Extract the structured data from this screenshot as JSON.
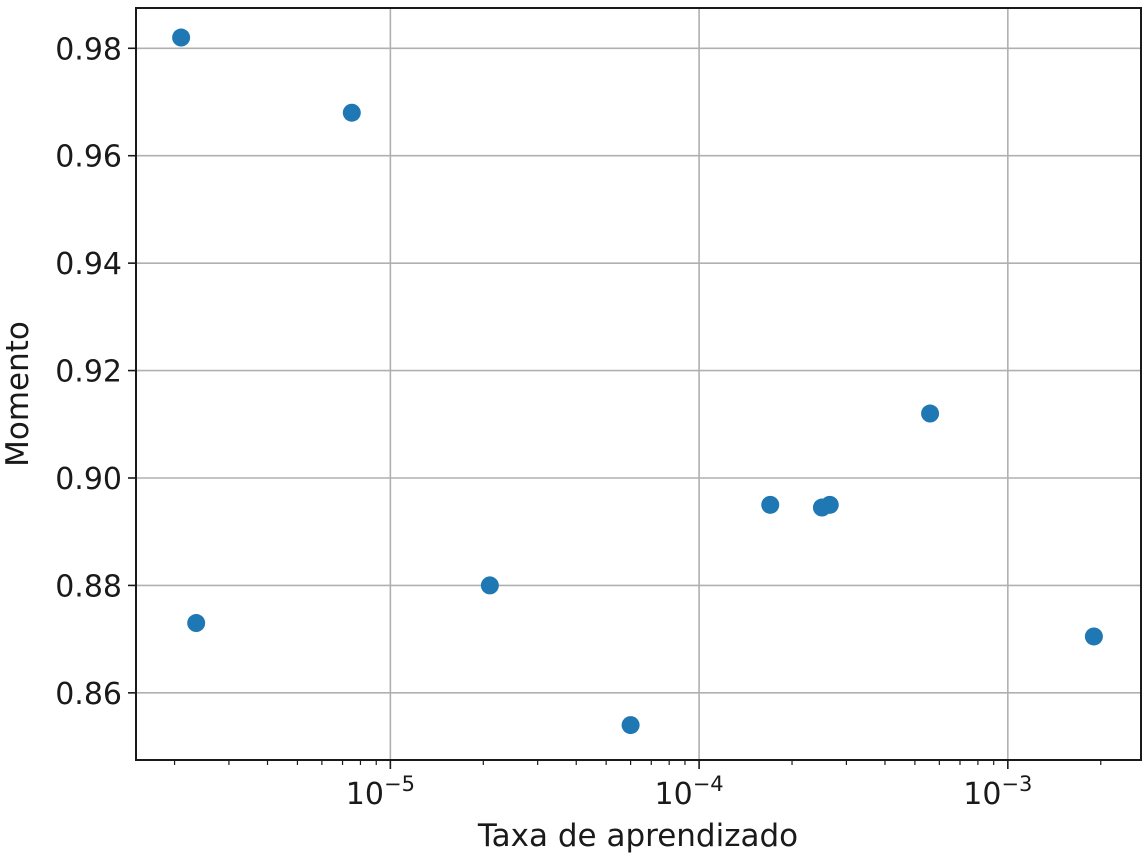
{
  "chart_data": {
    "type": "scatter",
    "xlabel": "Taxa de aprendizado",
    "ylabel": "Momento",
    "xscale": "log",
    "xlim": [
      1.5e-06,
      0.0027
    ],
    "ylim": [
      0.8475,
      0.9875
    ],
    "grid": true,
    "marker_color": "#1f77b4",
    "x_ticks": [
      {
        "value": 1e-05,
        "base": "10",
        "exponent": "−5"
      },
      {
        "value": 0.0001,
        "base": "10",
        "exponent": "−4"
      },
      {
        "value": 0.001,
        "base": "10",
        "exponent": "−3"
      }
    ],
    "y_ticks": [
      {
        "value": 0.86,
        "label": "0.86"
      },
      {
        "value": 0.88,
        "label": "0.88"
      },
      {
        "value": 0.9,
        "label": "0.90"
      },
      {
        "value": 0.92,
        "label": "0.92"
      },
      {
        "value": 0.94,
        "label": "0.94"
      },
      {
        "value": 0.96,
        "label": "0.96"
      },
      {
        "value": 0.98,
        "label": "0.98"
      }
    ],
    "points": [
      {
        "x": 2.1e-06,
        "y": 0.982
      },
      {
        "x": 2.35e-06,
        "y": 0.873
      },
      {
        "x": 7.5e-06,
        "y": 0.968
      },
      {
        "x": 2.1e-05,
        "y": 0.88
      },
      {
        "x": 6e-05,
        "y": 0.854
      },
      {
        "x": 0.00017,
        "y": 0.895
      },
      {
        "x": 0.00025,
        "y": 0.8945
      },
      {
        "x": 0.000265,
        "y": 0.895
      },
      {
        "x": 0.00056,
        "y": 0.912
      },
      {
        "x": 0.0019,
        "y": 0.8705
      }
    ]
  }
}
